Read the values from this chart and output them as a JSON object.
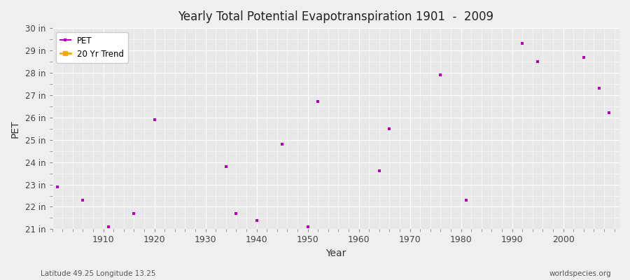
{
  "title": "Yearly Total Potential Evapotranspiration 1901  -  2009",
  "xlabel": "Year",
  "ylabel": "PET",
  "bottom_left": "Latitude 49.25 Longitude 13.25",
  "bottom_right": "worldspecies.org",
  "pet_color": "#BB00BB",
  "trend_color": "#FFA500",
  "background_color": "#E8E8E8",
  "grid_color": "#FFFFFF",
  "ylim_min": 21,
  "ylim_max": 30,
  "ytick_labels": [
    "21 in",
    "22 in",
    "23 in",
    "24 in",
    "25 in",
    "26 in",
    "27 in",
    "28 in",
    "29 in",
    "30 in"
  ],
  "ytick_values": [
    21,
    22,
    23,
    24,
    25,
    26,
    27,
    28,
    29,
    30
  ],
  "years": [
    1901,
    1902,
    1903,
    1904,
    1905,
    1906,
    1907,
    1908,
    1909,
    1910,
    1911,
    1912,
    1913,
    1914,
    1915,
    1916,
    1917,
    1918,
    1919,
    1920,
    1921,
    1922,
    1923,
    1924,
    1925,
    1926,
    1927,
    1928,
    1929,
    1930,
    1931,
    1932,
    1933,
    1934,
    1935,
    1936,
    1937,
    1938,
    1939,
    1940,
    1941,
    1942,
    1943,
    1944,
    1945,
    1946,
    1947,
    1948,
    1949,
    1950,
    1951,
    1952,
    1953,
    1954,
    1955,
    1956,
    1957,
    1958,
    1959,
    1960,
    1961,
    1962,
    1963,
    1964,
    1965,
    1966,
    1967,
    1968,
    1969,
    1970,
    1971,
    1972,
    1973,
    1974,
    1975,
    1976,
    1977,
    1978,
    1979,
    1980,
    1981,
    1982,
    1983,
    1984,
    1985,
    1986,
    1987,
    1988,
    1989,
    1990,
    1991,
    1992,
    1993,
    1994,
    1995,
    1996,
    1997,
    1998,
    1999,
    2000,
    2001,
    2002,
    2003,
    2004,
    2005,
    2006,
    2007,
    2008,
    2009
  ],
  "pet_values": [
    22.9,
    null,
    null,
    null,
    null,
    22.3,
    null,
    null,
    null,
    null,
    21.1,
    null,
    null,
    null,
    null,
    21.7,
    null,
    null,
    null,
    25.9,
    null,
    null,
    null,
    null,
    null,
    null,
    null,
    null,
    null,
    null,
    null,
    null,
    null,
    23.8,
    null,
    21.7,
    null,
    null,
    null,
    21.4,
    null,
    null,
    null,
    null,
    24.8,
    null,
    null,
    null,
    null,
    21.1,
    null,
    26.7,
    null,
    null,
    null,
    null,
    null,
    null,
    null,
    null,
    null,
    null,
    null,
    23.6,
    null,
    25.5,
    null,
    null,
    null,
    null,
    null,
    null,
    null,
    null,
    null,
    27.9,
    null,
    null,
    null,
    null,
    22.3,
    null,
    null,
    null,
    null,
    null,
    null,
    null,
    null,
    null,
    null,
    29.3,
    null,
    null,
    28.5,
    null,
    null,
    null,
    null,
    null,
    null,
    null,
    null,
    28.7,
    null,
    null,
    27.3,
    null,
    26.2
  ],
  "legend_loc": "upper left"
}
